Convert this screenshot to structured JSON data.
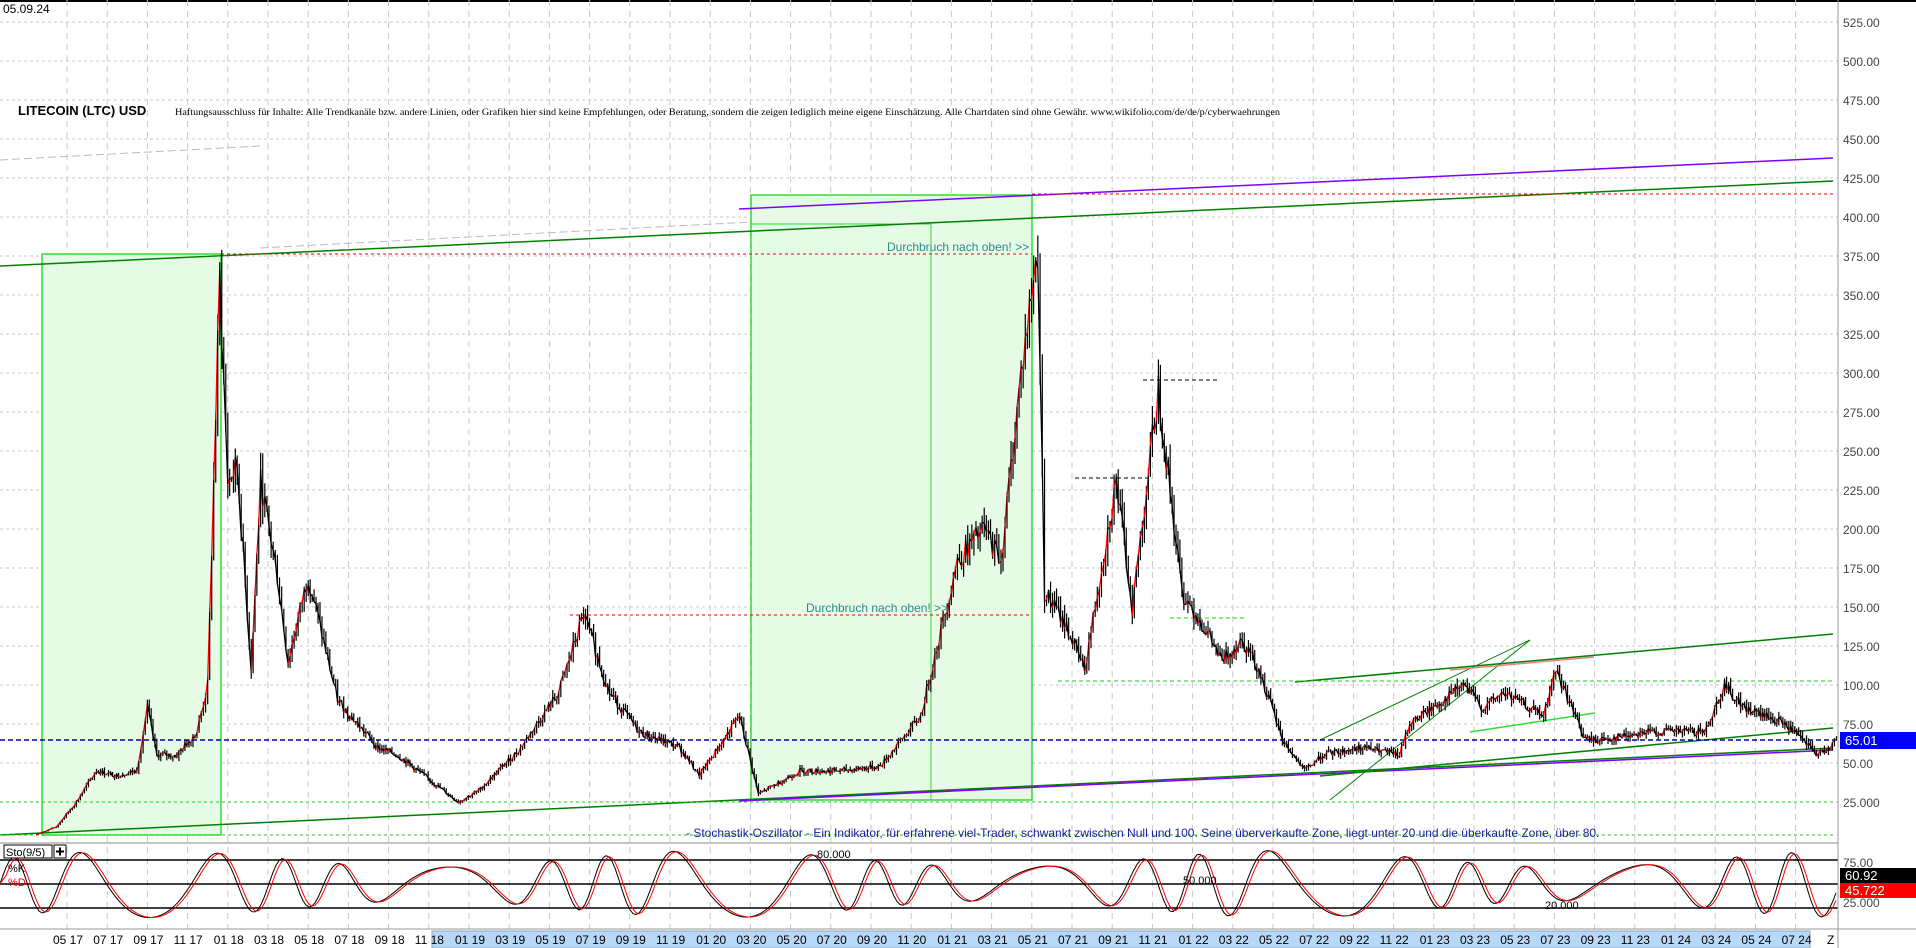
{
  "date_label": "05.09.24",
  "title": "LITECOIN (LTC) USD",
  "disclaimer": "Haftungsausschluss für Inhalte: Alle Trendkanäle bzw. andere Linien, oder Grafiken hier sind keine Empfehlungen, oder Beratung, sondern die zeigen lediglich meine eigene Einschätzung. Alle Chartdaten sind ohne Gewähr.  www.wikifolio.com/de/de/p/cyberwaehrungen",
  "annotations": {
    "breakout_1": "Durchbruch nach oben! >>",
    "breakout_2": "Durchbruch nach oben! >>",
    "stochastic_note": "- Stochastik-Oszillator - Ein Indikator, für erfahrene viel-Trader, schwankt zwischen Null und 100. Seine überverkaufte Zone, liegt unter 20 und die überkaufte Zone, über 80."
  },
  "colors": {
    "up_candle": "#ff0000",
    "down_candle": "#000000",
    "current_price_tag": "#0000ff",
    "channel_green": "#008000",
    "channel_purple": "#8000ff",
    "zone_fill": "#e6fbe6",
    "zone_border": "#33dd33",
    "stoch_k": "#000000",
    "stoch_d": "#ff0000",
    "axis_highlight": "#b8d8f8"
  },
  "chart_data": [
    {
      "type": "line",
      "title": "LITECOIN (LTC) USD",
      "xlabel": "",
      "ylabel": "",
      "ylim": [
        0,
        537.5
      ],
      "y_ticks": [
        "25.000",
        "50.00",
        "75.00",
        "100.00",
        "125.00",
        "150.00",
        "175.00",
        "200.00",
        "225.00",
        "250.00",
        "275.00",
        "300.00",
        "325.00",
        "350.00",
        "375.00",
        "400.00",
        "425.00",
        "450.00",
        "475.00",
        "500.00",
        "525.00"
      ],
      "x_ticks": [
        "05 17",
        "07 17",
        "09 17",
        "11 17",
        "01 18",
        "03 18",
        "05 18",
        "07 18",
        "09 18",
        "11 18",
        "01 19",
        "03 19",
        "05 19",
        "07 19",
        "09 19",
        "11 19",
        "01 20",
        "03 20",
        "05 20",
        "07 20",
        "09 20",
        "11 20",
        "01 21",
        "03 21",
        "05 21",
        "07 21",
        "09 21",
        "11 21",
        "01 22",
        "03 22",
        "05 22",
        "07 22",
        "09 22",
        "11 22",
        "01 23",
        "03 23",
        "05 23",
        "07 23",
        "09 23",
        "11 23",
        "01 24",
        "03 24",
        "05 24",
        "07 24"
      ],
      "x_axis_end_label": "Z",
      "grid": true,
      "current_price": "65.01",
      "series": [
        {
          "x": [
            "2017-03-15",
            "2017-04-15",
            "2017-05-15",
            "2017-06-15",
            "2017-07-15",
            "2017-08-15",
            "2017-09-01",
            "2017-09-15",
            "2017-10-15",
            "2017-11-15",
            "2017-12-01",
            "2017-12-19",
            "2017-12-31",
            "2018-01-15",
            "2018-02-06",
            "2018-02-20",
            "2018-03-15",
            "2018-04-01",
            "2018-05-01",
            "2018-06-15",
            "2018-08-15",
            "2018-09-15",
            "2018-11-15",
            "2018-12-15",
            "2019-01-15",
            "2019-03-15",
            "2019-05-15",
            "2019-06-22",
            "2019-08-01",
            "2019-09-15",
            "2019-11-15",
            "2019-12-15",
            "2020-02-15",
            "2020-03-13",
            "2020-05-15",
            "2020-07-15",
            "2020-09-15",
            "2020-11-15",
            "2021-01-10",
            "2021-02-20",
            "2021-03-15",
            "2021-04-15",
            "2021-05-10",
            "2021-05-20",
            "2021-06-20",
            "2021-07-20",
            "2021-08-15",
            "2021-09-07",
            "2021-10-01",
            "2021-11-10",
            "2021-12-15",
            "2022-01-15",
            "2022-02-15",
            "2022-03-15",
            "2022-04-10",
            "2022-05-15",
            "2022-06-18",
            "2022-07-15",
            "2022-09-15",
            "2022-11-10",
            "2022-11-25",
            "2023-01-15",
            "2023-02-15",
            "2023-03-15",
            "2023-04-15",
            "2023-06-15",
            "2023-07-03",
            "2023-08-17",
            "2023-09-15",
            "2023-11-15",
            "2024-01-15",
            "2024-02-15",
            "2024-03-15",
            "2024-04-15",
            "2024-06-15",
            "2024-08-05",
            "2024-09-05"
          ],
          "y": [
            4,
            9,
            25,
            45,
            42,
            45,
            85,
            55,
            55,
            70,
            100,
            360,
            230,
            240,
            110,
            230,
            170,
            115,
            170,
            90,
            60,
            55,
            35,
            25,
            32,
            58,
            95,
            145,
            95,
            70,
            60,
            42,
            80,
            30,
            45,
            45,
            48,
            80,
            180,
            200,
            180,
            300,
            380,
            160,
            140,
            110,
            175,
            230,
            150,
            290,
            160,
            140,
            115,
            130,
            110,
            65,
            45,
            55,
            60,
            55,
            75,
            90,
            100,
            85,
            95,
            80,
            110,
            65,
            65,
            70,
            70,
            70,
            100,
            85,
            75,
            55,
            65
          ]
        }
      ]
    },
    {
      "type": "line",
      "title": "Sto(9/5)",
      "series": [
        {
          "name": "%K",
          "last": "60.92"
        },
        {
          "name": "%D",
          "last": "45.722"
        }
      ],
      "levels": [
        "80.000",
        "50.000",
        "20.000"
      ],
      "y_ticks": [
        "75.00",
        "25.000"
      ],
      "ylim": [
        0,
        100
      ]
    }
  ]
}
